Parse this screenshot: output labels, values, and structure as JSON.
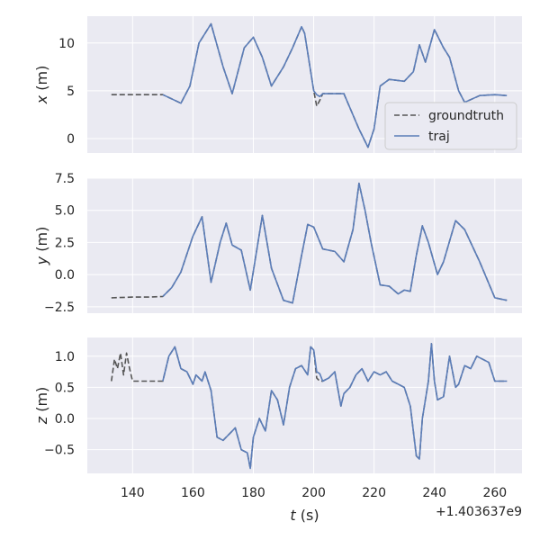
{
  "colors": {
    "axes_bg": "#EAEAF2",
    "grid": "#FFFFFF",
    "groundtruth": "#555555",
    "traj": "#5B7DB8",
    "text": "#262626"
  },
  "chart_data": [
    {
      "type": "line",
      "ylabel_var": "x",
      "ylabel_unit": " (m)",
      "ylim": [
        -1.5,
        12.8
      ],
      "yticks": [
        0,
        5,
        10
      ],
      "ytick_labels": [
        "0",
        "5",
        "10"
      ],
      "legend": {
        "location": "lower-right",
        "entries": [
          "groundtruth",
          "traj"
        ]
      },
      "series": [
        {
          "name": "groundtruth",
          "style": "dashed",
          "x": [
            133,
            140,
            145,
            150,
            156,
            159,
            162,
            166,
            170,
            173,
            177,
            180,
            183,
            186,
            190,
            193,
            196,
            197,
            200,
            201,
            202,
            203,
            205,
            207,
            210,
            215,
            218,
            220,
            222,
            225,
            230,
            233,
            235,
            237,
            240,
            243,
            245,
            248,
            250,
            255,
            260,
            264
          ],
          "y": [
            4.6,
            4.6,
            4.6,
            4.6,
            3.7,
            5.5,
            10.0,
            12.0,
            7.5,
            4.7,
            9.5,
            10.6,
            8.5,
            5.5,
            7.5,
            9.5,
            11.7,
            11.0,
            5.0,
            3.4,
            4.0,
            4.7,
            4.7,
            4.7,
            4.7,
            1.0,
            -0.9,
            1.0,
            5.5,
            6.2,
            6.0,
            7.0,
            9.8,
            8.0,
            11.4,
            9.5,
            8.5,
            5.0,
            3.8,
            4.5,
            4.6,
            4.5
          ]
        },
        {
          "name": "traj",
          "style": "solid",
          "x": [
            150,
            156,
            159,
            162,
            166,
            170,
            173,
            177,
            180,
            183,
            186,
            190,
            193,
            196,
            197,
            200,
            201,
            202,
            203,
            205,
            207,
            210,
            215,
            218,
            220,
            222,
            225,
            230,
            233,
            235,
            237,
            240,
            243,
            245,
            248,
            250,
            255,
            260,
            264
          ],
          "y": [
            4.6,
            3.7,
            5.5,
            10.0,
            12.0,
            7.5,
            4.7,
            9.5,
            10.6,
            8.5,
            5.5,
            7.5,
            9.5,
            11.7,
            11.0,
            5.0,
            4.6,
            4.4,
            4.7,
            4.7,
            4.7,
            4.7,
            1.0,
            -0.9,
            1.0,
            5.5,
            6.2,
            6.0,
            7.0,
            9.8,
            8.0,
            11.4,
            9.5,
            8.5,
            5.0,
            3.8,
            4.5,
            4.6,
            4.5
          ]
        }
      ]
    },
    {
      "type": "line",
      "ylabel_var": "y",
      "ylabel_unit": " (m)",
      "ylim": [
        -3.0,
        7.5
      ],
      "yticks": [
        -2.5,
        0,
        2.5,
        5,
        7.5
      ],
      "ytick_labels": [
        "−2.5",
        "0.0",
        "2.5",
        "5.0",
        "7.5"
      ],
      "series": [
        {
          "name": "groundtruth",
          "style": "dashed",
          "x": [
            133,
            140,
            145,
            150,
            153,
            156,
            160,
            163,
            166,
            169,
            171,
            173,
            176,
            179,
            183,
            186,
            190,
            193,
            196,
            198,
            200,
            203,
            207,
            210,
            213,
            215,
            217,
            219,
            222,
            225,
            228,
            230,
            232,
            234,
            236,
            238,
            241,
            243,
            247,
            250,
            255,
            260,
            264
          ],
          "y": [
            -1.8,
            -1.75,
            -1.75,
            -1.7,
            -1.0,
            0.2,
            3.0,
            4.5,
            -0.6,
            2.5,
            4.0,
            2.3,
            1.9,
            -1.2,
            4.6,
            0.5,
            -2.0,
            -2.2,
            1.5,
            3.9,
            3.7,
            2.0,
            1.8,
            1.0,
            3.5,
            7.1,
            5.0,
            2.5,
            -0.8,
            -0.9,
            -1.5,
            -1.2,
            -1.3,
            1.5,
            3.8,
            2.5,
            0.0,
            1.0,
            4.2,
            3.5,
            1.0,
            -1.8,
            -2.0
          ]
        },
        {
          "name": "traj",
          "style": "solid",
          "x": [
            150,
            153,
            156,
            160,
            163,
            166,
            169,
            171,
            173,
            176,
            179,
            183,
            186,
            190,
            193,
            196,
            198,
            200,
            203,
            207,
            210,
            213,
            215,
            217,
            219,
            222,
            225,
            228,
            230,
            232,
            234,
            236,
            238,
            241,
            243,
            247,
            250,
            255,
            260,
            264
          ],
          "y": [
            -1.7,
            -1.0,
            0.2,
            3.0,
            4.5,
            -0.6,
            2.5,
            4.0,
            2.3,
            1.9,
            -1.2,
            4.6,
            0.5,
            -2.0,
            -2.2,
            1.5,
            3.9,
            3.7,
            2.0,
            1.8,
            1.0,
            3.5,
            7.1,
            5.0,
            2.5,
            -0.8,
            -0.9,
            -1.5,
            -1.2,
            -1.3,
            1.5,
            3.8,
            2.5,
            0.0,
            1.0,
            4.2,
            3.5,
            1.0,
            -1.8,
            -2.0
          ]
        }
      ]
    },
    {
      "type": "line",
      "ylabel_var": "z",
      "ylabel_unit": " (m)",
      "ylim": [
        -0.88,
        1.3
      ],
      "yticks": [
        -0.5,
        0,
        0.5,
        1.0
      ],
      "ytick_labels": [
        "−0.5",
        "0.0",
        "0.5",
        "1.0"
      ],
      "xlabel_var": "t",
      "xlabel_unit": " (s)",
      "x_offset_label": "+1.403637e9",
      "xlim": [
        125,
        269
      ],
      "xticks": [
        140,
        160,
        180,
        200,
        220,
        240,
        260
      ],
      "xtick_labels": [
        "140",
        "160",
        "180",
        "200",
        "220",
        "240",
        "260"
      ],
      "series": [
        {
          "name": "groundtruth",
          "style": "dashed",
          "x": [
            133,
            134,
            135,
            136,
            137,
            138,
            139,
            140,
            145,
            150,
            152,
            154,
            156,
            158,
            160,
            161,
            163,
            164,
            166,
            168,
            170,
            172,
            174,
            176,
            178,
            179,
            180,
            182,
            184,
            186,
            188,
            190,
            192,
            194,
            196,
            198,
            199,
            200,
            201,
            202,
            203,
            205,
            207,
            209,
            210,
            212,
            214,
            216,
            218,
            220,
            222,
            224,
            226,
            228,
            230,
            232,
            234,
            235,
            236,
            238,
            239,
            240,
            241,
            243,
            245,
            247,
            248,
            250,
            252,
            254,
            256,
            258,
            260,
            262,
            264
          ],
          "y": [
            0.6,
            0.95,
            0.8,
            1.05,
            0.7,
            1.05,
            0.8,
            0.6,
            0.6,
            0.6,
            1.0,
            1.15,
            0.8,
            0.75,
            0.55,
            0.7,
            0.6,
            0.75,
            0.45,
            -0.3,
            -0.35,
            -0.25,
            -0.15,
            -0.5,
            -0.55,
            -0.8,
            -0.3,
            0.0,
            -0.2,
            0.45,
            0.3,
            -0.1,
            0.5,
            0.8,
            0.85,
            0.7,
            1.15,
            1.1,
            0.65,
            0.6,
            0.6,
            0.65,
            0.75,
            0.2,
            0.4,
            0.5,
            0.7,
            0.8,
            0.6,
            0.75,
            0.7,
            0.75,
            0.6,
            0.55,
            0.5,
            0.2,
            -0.6,
            -0.65,
            0.0,
            0.6,
            1.2,
            0.6,
            0.3,
            0.35,
            1.0,
            0.5,
            0.55,
            0.85,
            0.8,
            1.0,
            0.95,
            0.9,
            0.6,
            0.6,
            0.6
          ]
        },
        {
          "name": "traj",
          "style": "solid",
          "x": [
            150,
            152,
            154,
            156,
            158,
            160,
            161,
            163,
            164,
            166,
            168,
            170,
            172,
            174,
            176,
            178,
            179,
            180,
            182,
            184,
            186,
            188,
            190,
            192,
            194,
            196,
            198,
            199,
            200,
            201,
            202,
            203,
            205,
            207,
            209,
            210,
            212,
            214,
            216,
            218,
            220,
            222,
            224,
            226,
            228,
            230,
            232,
            234,
            235,
            236,
            238,
            239,
            240,
            241,
            243,
            245,
            247,
            248,
            250,
            252,
            254,
            256,
            258,
            260,
            262,
            264
          ],
          "y": [
            0.6,
            1.0,
            1.15,
            0.8,
            0.75,
            0.55,
            0.7,
            0.6,
            0.75,
            0.45,
            -0.3,
            -0.35,
            -0.25,
            -0.15,
            -0.5,
            -0.55,
            -0.8,
            -0.3,
            0.0,
            -0.2,
            0.45,
            0.3,
            -0.1,
            0.5,
            0.8,
            0.85,
            0.7,
            1.15,
            1.1,
            0.75,
            0.72,
            0.6,
            0.65,
            0.75,
            0.2,
            0.4,
            0.5,
            0.7,
            0.8,
            0.6,
            0.75,
            0.7,
            0.75,
            0.6,
            0.55,
            0.5,
            0.2,
            -0.6,
            -0.65,
            0.0,
            0.6,
            1.2,
            0.6,
            0.3,
            0.35,
            1.0,
            0.5,
            0.55,
            0.85,
            0.8,
            1.0,
            0.95,
            0.9,
            0.6,
            0.6,
            0.6
          ]
        }
      ]
    }
  ]
}
